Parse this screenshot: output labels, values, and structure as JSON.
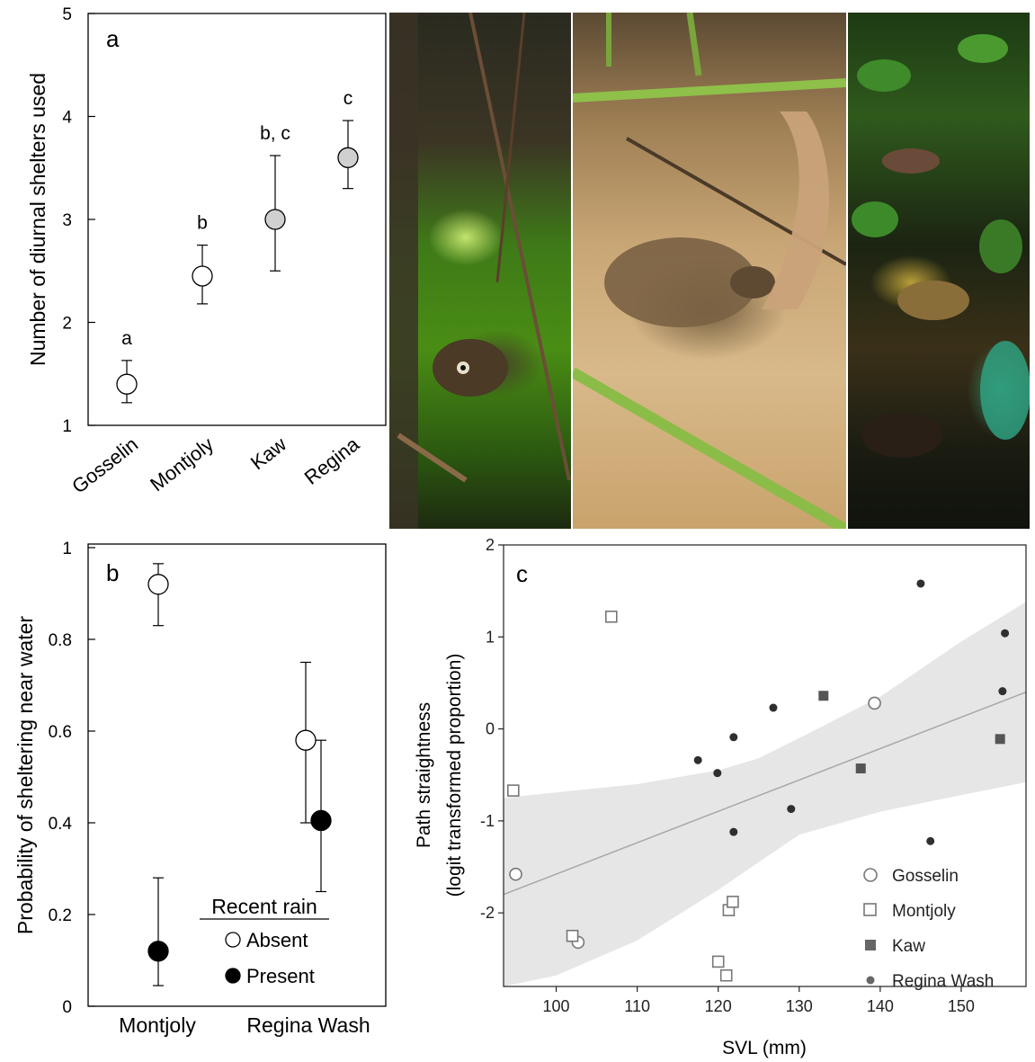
{
  "panels": {
    "a": {
      "letter": "a"
    },
    "b": {
      "letter": "b"
    },
    "c": {
      "letter": "c"
    }
  },
  "photos": [
    {
      "subject": "toad-in-green-water-photo"
    },
    {
      "subject": "toad-on-sand-photo"
    },
    {
      "subject": "toad-in-leaf-litter-photo"
    }
  ],
  "chart_data": [
    {
      "id": "a",
      "type": "scatter",
      "title": "",
      "xlabel": "",
      "ylabel": "Number of diurnal shelters used",
      "categories": [
        "Gosselin",
        "Montjoly",
        "Kaw",
        "Regina"
      ],
      "yticks": [
        "1",
        "2",
        "3",
        "4",
        "5"
      ],
      "ylim": [
        1,
        5
      ],
      "series": [
        {
          "values": [
            1.4,
            2.45,
            3.0,
            3.6
          ],
          "lower": [
            1.22,
            2.18,
            2.5,
            3.3
          ],
          "upper": [
            1.63,
            2.75,
            3.62,
            3.96
          ],
          "letters": [
            "a",
            "b",
            "b, c",
            "c"
          ],
          "fill": [
            "#ffffff",
            "#ffffff",
            "#d0d0d0",
            "#d0d0d0"
          ]
        }
      ],
      "grid": false
    },
    {
      "id": "b",
      "type": "scatter",
      "title": "",
      "xlabel": "",
      "ylabel": "Probability of sheltering near water",
      "categories": [
        "Montjoly",
        "Regina Wash"
      ],
      "yticks": [
        "0",
        "0.2",
        "0.4",
        "0.6",
        "0.8",
        "1"
      ],
      "ylim": [
        0,
        1
      ],
      "legend": {
        "title": "Recent rain",
        "position": "bottom-center"
      },
      "series": [
        {
          "name": "Absent",
          "fill": "#ffffff",
          "values": [
            0.92,
            0.58
          ],
          "lower": [
            0.83,
            0.4
          ],
          "upper": [
            0.965,
            0.75
          ]
        },
        {
          "name": "Present",
          "fill": "#000000",
          "values": [
            0.12,
            0.405
          ],
          "lower": [
            0.045,
            0.25
          ],
          "upper": [
            0.28,
            0.58
          ]
        }
      ],
      "grid": false
    },
    {
      "id": "c",
      "type": "scatter",
      "title": "",
      "xlabel": "SVL (mm)",
      "ylabel_line1": "Path straightness",
      "ylabel_line2": "(logit transformed proportion)",
      "xticks": [
        "100",
        "110",
        "120",
        "130",
        "140",
        "150"
      ],
      "yticks": [
        "2",
        "1",
        "0",
        "-1",
        "-2"
      ],
      "xlim": [
        93.5,
        158
      ],
      "ylim": [
        -2.8,
        2
      ],
      "legend_position": "bottom-right",
      "series": [
        {
          "name": "Gosselin",
          "marker": "open-circle",
          "points": [
            [
              95,
              -1.58
            ],
            [
              102.7,
              -2.32
            ],
            [
              139.3,
              0.28
            ]
          ]
        },
        {
          "name": "Montjoly",
          "marker": "open-square",
          "points": [
            [
              94.7,
              -0.67
            ],
            [
              102,
              -2.25
            ],
            [
              106.8,
              1.22
            ],
            [
              121.3,
              -1.97
            ],
            [
              121.8,
              -1.88
            ],
            [
              120,
              -2.53
            ],
            [
              121,
              -2.68
            ]
          ]
        },
        {
          "name": "Kaw",
          "marker": "filled-square",
          "points": [
            [
              133,
              0.36
            ],
            [
              137.6,
              -0.43
            ],
            [
              154.8,
              -0.11
            ]
          ]
        },
        {
          "name": "Regina Wash",
          "marker": "filled-dot",
          "points": [
            [
              117.5,
              -0.34
            ],
            [
              119.9,
              -0.48
            ],
            [
              121.9,
              -0.09
            ],
            [
              126.8,
              0.23
            ],
            [
              121.9,
              -1.12
            ],
            [
              129,
              -0.87
            ],
            [
              145,
              1.58
            ],
            [
              146.2,
              -1.22
            ],
            [
              155.4,
              1.04
            ],
            [
              155.1,
              0.41
            ]
          ]
        }
      ],
      "fit_line": {
        "x": [
          93.5,
          158
        ],
        "y": [
          -1.8,
          0.4
        ]
      },
      "confidence_band": {
        "x": [
          93.5,
          100,
          110,
          120,
          125,
          130,
          140,
          150,
          158
        ],
        "upper": [
          -0.75,
          -0.69,
          -0.6,
          -0.45,
          -0.32,
          -0.1,
          0.35,
          0.95,
          1.38
        ],
        "lower": [
          -2.8,
          -2.68,
          -2.3,
          -1.75,
          -1.45,
          -1.15,
          -0.9,
          -0.72,
          -0.58
        ]
      },
      "grid": false
    }
  ]
}
